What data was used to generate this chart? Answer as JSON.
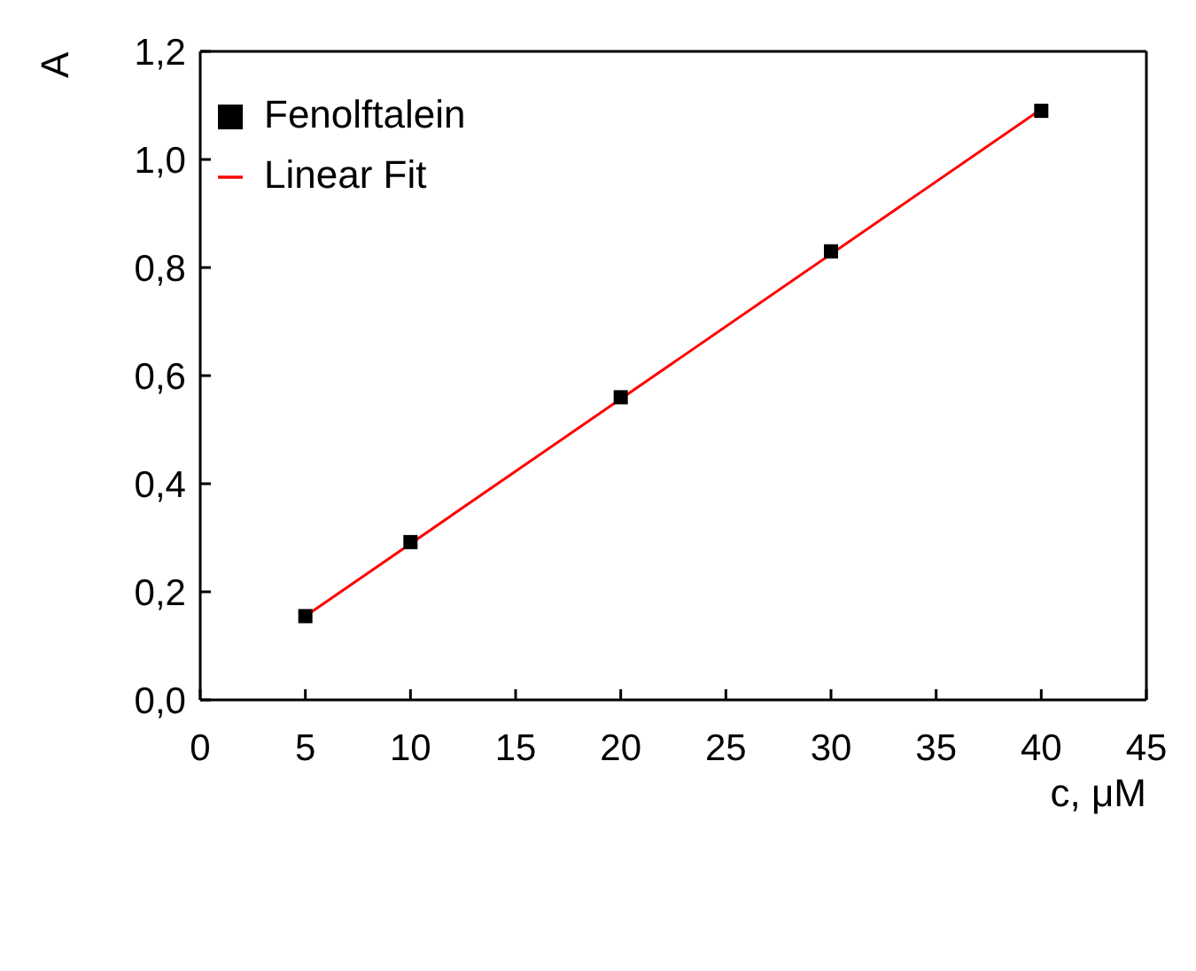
{
  "chart_data": {
    "type": "scatter",
    "xlabel": "c, μM",
    "ylabel": "A",
    "xlim": [
      0,
      45
    ],
    "xticks": [
      0,
      5,
      10,
      15,
      20,
      25,
      30,
      35,
      40,
      45
    ],
    "ylim": [
      0,
      1.2
    ],
    "yticks": [
      {
        "value": 0,
        "label": "0,0"
      },
      {
        "value": 0.2,
        "label": "0,2"
      },
      {
        "value": 0.4,
        "label": "0,4"
      },
      {
        "value": 0.6,
        "label": "0,6"
      },
      {
        "value": 0.8,
        "label": "0,8"
      },
      {
        "value": 1.0,
        "label": "1,0"
      },
      {
        "value": 1.2,
        "label": "1,2"
      }
    ],
    "legend": "top left",
    "series": [
      {
        "name": "Fenolftalein",
        "type": "scatter",
        "marker": "square",
        "color": "#000000",
        "x": [
          5,
          10,
          20,
          30,
          40
        ],
        "values": [
          0.155,
          0.292,
          0.56,
          0.83,
          1.09
        ]
      },
      {
        "name": "Linear Fit",
        "type": "line",
        "marker": "none",
        "line_style": "solid",
        "color": "#ff0000",
        "x": [
          5,
          40
        ],
        "values": [
          0.155,
          1.093
        ]
      }
    ]
  }
}
